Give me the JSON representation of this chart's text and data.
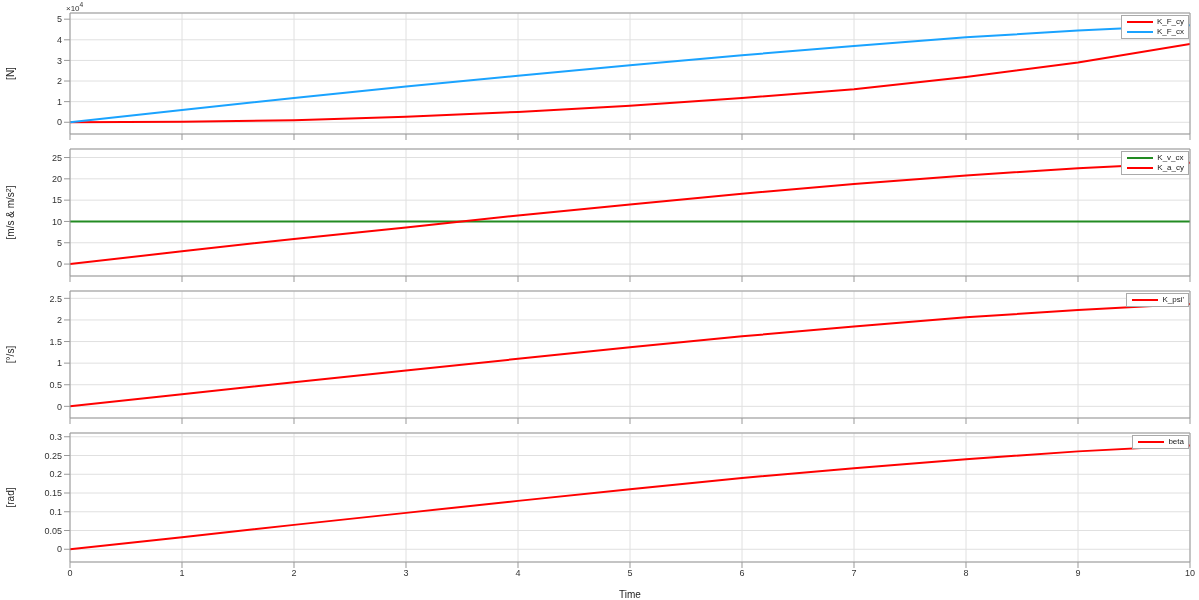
{
  "chart_data": [
    {
      "type": "line",
      "ylabel": "[N]",
      "annotations": [
        "×10$^{4}$"
      ],
      "x": [
        0,
        1,
        2,
        3,
        4,
        5,
        6,
        7,
        8,
        9,
        10
      ],
      "xlim": [
        0,
        10
      ],
      "xticks": [
        0,
        1,
        2,
        3,
        4,
        5,
        6,
        7,
        8,
        9,
        10
      ],
      "ylim": [
        -0.57,
        5.3
      ],
      "yticks": [
        0,
        1,
        2,
        3,
        4,
        5
      ],
      "tick_labels": "y",
      "grid": true,
      "legend": "top right",
      "marker": "none",
      "series": [
        {
          "name": "K_F_cy",
          "color": "#ff0000",
          "values": [
            0,
            0.02,
            0.1,
            0.27,
            0.5,
            0.8,
            1.18,
            1.6,
            2.2,
            2.9,
            3.8
          ]
        },
        {
          "name": "K_F_cx",
          "color": "#1aa3ff",
          "values": [
            0,
            0.6,
            1.18,
            1.73,
            2.26,
            2.76,
            3.25,
            3.7,
            4.12,
            4.45,
            4.7
          ]
        }
      ]
    },
    {
      "type": "line",
      "ylabel": "[m/s & m/s$^{2}$]",
      "x": [
        0,
        1,
        2,
        3,
        4,
        5,
        6,
        7,
        8,
        9,
        10
      ],
      "xlim": [
        0,
        10
      ],
      "xticks": [
        0,
        1,
        2,
        3,
        4,
        5,
        6,
        7,
        8,
        9,
        10
      ],
      "ylim": [
        -2.8,
        27
      ],
      "yticks": [
        0,
        5,
        10,
        15,
        20,
        25
      ],
      "tick_labels": "y",
      "grid": true,
      "legend": "top right",
      "marker": "none",
      "series": [
        {
          "name": "K_v_cx",
          "color": "#228b22",
          "values": [
            10,
            10,
            10,
            10,
            10,
            10,
            10,
            10,
            10,
            10,
            10
          ]
        },
        {
          "name": "K_a_cy",
          "color": "#ff0000",
          "values": [
            0,
            3,
            5.9,
            8.6,
            11.4,
            14,
            16.5,
            18.8,
            20.8,
            22.5,
            23.8
          ]
        }
      ]
    },
    {
      "type": "line",
      "ylabel": "[°/s]",
      "x": [
        0,
        1,
        2,
        3,
        4,
        5,
        6,
        7,
        8,
        9,
        10
      ],
      "xlim": [
        0,
        10
      ],
      "xticks": [
        0,
        1,
        2,
        3,
        4,
        5,
        6,
        7,
        8,
        9,
        10
      ],
      "ylim": [
        -0.27,
        2.67
      ],
      "yticks": [
        0,
        0.5,
        1,
        1.5,
        2,
        2.5
      ],
      "tick_labels": "y",
      "grid": true,
      "legend": "top right",
      "marker": "none",
      "series": [
        {
          "name": "K_psi'",
          "color": "#ff0000",
          "values": [
            0,
            0.28,
            0.56,
            0.83,
            1.1,
            1.37,
            1.62,
            1.85,
            2.06,
            2.23,
            2.37
          ]
        }
      ]
    },
    {
      "type": "line",
      "ylabel": "[rad]",
      "xlabel": "Time",
      "x": [
        0,
        1,
        2,
        3,
        4,
        5,
        6,
        7,
        8,
        9,
        10
      ],
      "xlim": [
        0,
        10
      ],
      "xticks": [
        0,
        1,
        2,
        3,
        4,
        5,
        6,
        7,
        8,
        9,
        10
      ],
      "ylim": [
        -0.034,
        0.31
      ],
      "yticks": [
        0,
        0.05,
        0.1,
        0.15,
        0.2,
        0.25,
        0.3
      ],
      "grid": true,
      "legend": "top right",
      "marker": "none",
      "series": [
        {
          "name": "beta",
          "color": "#ff0000",
          "values": [
            0,
            0.032,
            0.065,
            0.097,
            0.129,
            0.16,
            0.19,
            0.216,
            0.24,
            0.261,
            0.277
          ]
        }
      ]
    }
  ]
}
